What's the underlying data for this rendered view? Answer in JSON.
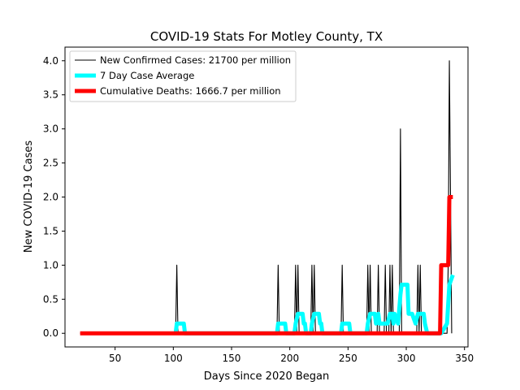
{
  "chart_data": {
    "type": "line",
    "title": "COVID-19 Stats For Motley County, TX",
    "xlabel": "Days Since 2020 Began",
    "ylabel": "New COVID-19 Cases",
    "xlim": [
      7,
      353
    ],
    "ylim": [
      -0.2,
      4.2
    ],
    "xticks": [
      50,
      100,
      150,
      200,
      250,
      300,
      350
    ],
    "yticks": [
      0.0,
      0.5,
      1.0,
      1.5,
      2.0,
      2.5,
      3.0,
      3.5,
      4.0
    ],
    "grid": false,
    "legend_position": "top-left",
    "series": [
      {
        "name": "New Confirmed Cases: 21700 per million",
        "color": "#000000",
        "style": "thin",
        "points": [
          [
            20,
            0
          ],
          [
            102,
            0
          ],
          [
            103,
            1
          ],
          [
            104,
            0
          ],
          [
            189,
            0
          ],
          [
            190,
            1
          ],
          [
            191,
            0
          ],
          [
            204,
            0
          ],
          [
            205,
            1
          ],
          [
            206,
            0
          ],
          [
            207,
            1
          ],
          [
            208,
            0
          ],
          [
            218,
            0
          ],
          [
            219,
            1
          ],
          [
            220,
            0
          ],
          [
            221,
            1
          ],
          [
            222,
            0
          ],
          [
            244,
            0
          ],
          [
            245,
            1
          ],
          [
            246,
            0
          ],
          [
            266,
            0
          ],
          [
            267,
            1
          ],
          [
            268,
            0
          ],
          [
            269,
            1
          ],
          [
            270,
            0
          ],
          [
            275,
            0
          ],
          [
            276,
            1
          ],
          [
            277,
            0
          ],
          [
            281,
            0
          ],
          [
            282,
            1
          ],
          [
            283,
            0
          ],
          [
            285,
            0
          ],
          [
            286,
            1
          ],
          [
            287,
            0
          ],
          [
            288,
            1
          ],
          [
            289,
            0
          ],
          [
            294,
            0
          ],
          [
            295,
            3
          ],
          [
            296,
            0
          ],
          [
            309,
            0
          ],
          [
            310,
            1
          ],
          [
            311,
            0
          ],
          [
            312,
            1
          ],
          [
            313,
            0
          ],
          [
            335,
            0
          ],
          [
            336,
            1
          ],
          [
            337,
            4
          ],
          [
            338,
            2
          ],
          [
            339,
            0
          ]
        ]
      },
      {
        "name": "7 Day Case Average",
        "color": "#00ffff",
        "style": "thick",
        "points": [
          [
            102,
            0
          ],
          [
            103,
            0.143
          ],
          [
            109,
            0.143
          ],
          [
            110,
            0
          ],
          [
            189,
            0
          ],
          [
            190,
            0.143
          ],
          [
            196,
            0.143
          ],
          [
            197,
            0
          ],
          [
            204,
            0
          ],
          [
            205,
            0.143
          ],
          [
            207,
            0.286
          ],
          [
            211,
            0.286
          ],
          [
            212,
            0.143
          ],
          [
            213,
            0.143
          ],
          [
            214,
            0
          ],
          [
            218,
            0
          ],
          [
            219,
            0.143
          ],
          [
            221,
            0.286
          ],
          [
            225,
            0.286
          ],
          [
            226,
            0.143
          ],
          [
            227,
            0.143
          ],
          [
            228,
            0
          ],
          [
            244,
            0
          ],
          [
            245,
            0.143
          ],
          [
            251,
            0.143
          ],
          [
            252,
            0
          ],
          [
            266,
            0
          ],
          [
            267,
            0.143
          ],
          [
            269,
            0.286
          ],
          [
            273,
            0.286
          ],
          [
            274,
            0.143
          ],
          [
            276,
            0.286
          ],
          [
            277,
            0.143
          ],
          [
            282,
            0.143
          ],
          [
            284,
            0.143
          ],
          [
            286,
            0.286
          ],
          [
            288,
            0.286
          ],
          [
            289,
            0.143
          ],
          [
            290,
            0.286
          ],
          [
            293,
            0.143
          ],
          [
            295,
            0.571
          ],
          [
            296,
            0.714
          ],
          [
            301,
            0.714
          ],
          [
            302,
            0.286
          ],
          [
            305,
            0.286
          ],
          [
            308,
            0.143
          ],
          [
            310,
            0.286
          ],
          [
            315,
            0.286
          ],
          [
            316,
            0.143
          ],
          [
            318,
            0
          ],
          [
            330,
            0
          ],
          [
            335,
            0.143
          ],
          [
            337,
            0.714
          ],
          [
            340,
            0.857
          ]
        ]
      },
      {
        "name": "Cumulative Deaths: 1666.7 per million",
        "color": "#ff0000",
        "style": "thick",
        "points": [
          [
            20,
            0
          ],
          [
            329,
            0
          ],
          [
            330,
            1
          ],
          [
            336,
            1
          ],
          [
            337,
            2
          ],
          [
            340,
            2
          ]
        ]
      }
    ]
  }
}
